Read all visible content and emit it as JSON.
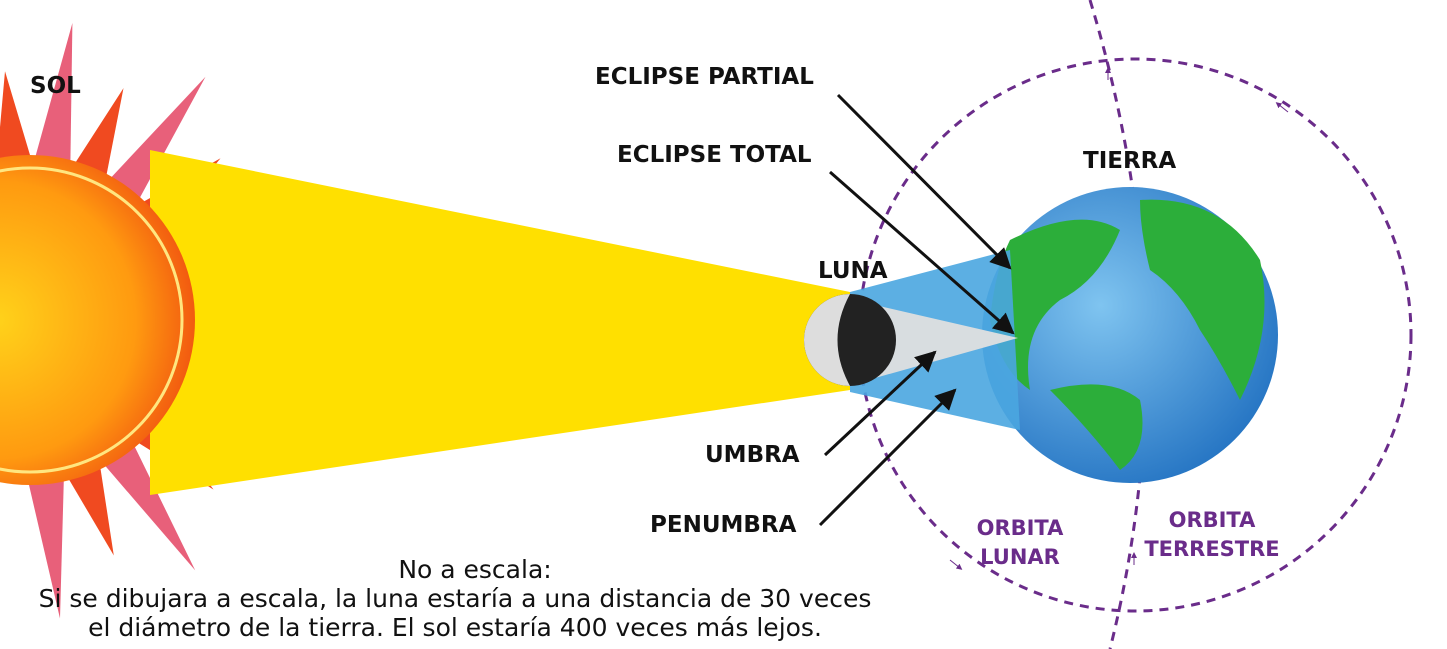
{
  "labels": {
    "sol": "SOL",
    "eclipse_partial": "ECLIPSE PARTIAL",
    "eclipse_total": "ECLIPSE TOTAL",
    "tierra": "TIERRA",
    "luna": "LUNA",
    "umbra": "UMBRA",
    "penumbra": "PENUMBRA",
    "orbita_lunar": [
      "ORBITA",
      "LUNAR"
    ],
    "orbita_terrestre": [
      "ORBITA",
      "TERRESTRE"
    ]
  },
  "note": {
    "title": "No a escala:",
    "lines": [
      "Si se dibujara a escala, la luna estaría a una distancia de 30 veces",
      "el diámetro de la tierra. El sol estaría 400 veces más lejos."
    ]
  }
}
